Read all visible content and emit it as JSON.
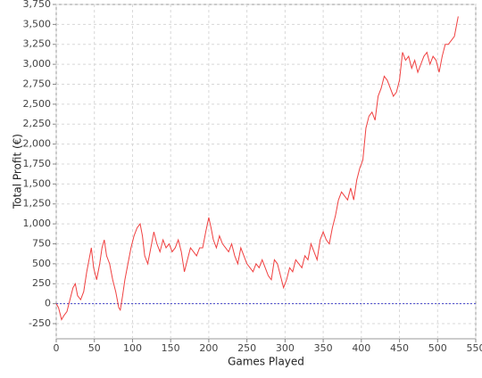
{
  "chart_data": {
    "type": "line",
    "xlabel": "Games Played",
    "ylabel": "Total Profit (€)",
    "xlim": [
      0,
      550
    ],
    "ylim": [
      -440,
      3750
    ],
    "xticks": [
      0,
      50,
      100,
      150,
      200,
      250,
      300,
      350,
      400,
      450,
      500,
      550
    ],
    "yticks": [
      -250,
      0,
      250,
      500,
      750,
      {
        "value": 1000,
        "label": "1,000"
      },
      {
        "value": 1250,
        "label": "1,250"
      },
      {
        "value": 1500,
        "label": "1,500"
      },
      {
        "value": 1750,
        "label": "1,750"
      },
      {
        "value": 2000,
        "label": "2,000"
      },
      {
        "value": 2250,
        "label": "2,250"
      },
      {
        "value": 2500,
        "label": "2,500"
      },
      {
        "value": 2750,
        "label": "2,750"
      },
      {
        "value": 3000,
        "label": "3,000"
      },
      {
        "value": 3250,
        "label": "3,250"
      },
      {
        "value": 3500,
        "label": "3,500"
      },
      {
        "value": 3750,
        "label": "3,750"
      }
    ],
    "grid": true,
    "reference_line": {
      "value": 0,
      "color": "#4444cc"
    },
    "series": [
      {
        "color": "#f04040",
        "x": [
          0,
          3,
          7,
          10,
          14,
          18,
          22,
          25,
          28,
          32,
          36,
          40,
          44,
          46,
          49,
          53,
          57,
          60,
          63,
          66,
          70,
          74,
          78,
          82,
          84,
          87,
          90,
          94,
          98,
          102,
          106,
          110,
          113,
          116,
          120,
          124,
          128,
          132,
          136,
          140,
          144,
          148,
          152,
          156,
          160,
          164,
          168,
          172,
          176,
          180,
          184,
          188,
          192,
          196,
          200,
          203,
          206,
          210,
          214,
          218,
          222,
          226,
          230,
          234,
          238,
          242,
          246,
          250,
          254,
          258,
          262,
          266,
          270,
          274,
          278,
          282,
          286,
          290,
          294,
          298,
          302,
          306,
          310,
          314,
          318,
          322,
          326,
          330,
          334,
          338,
          342,
          346,
          350,
          354,
          358,
          362,
          366,
          370,
          374,
          378,
          382,
          386,
          390,
          394,
          398,
          402,
          406,
          410,
          414,
          418,
          422,
          426,
          430,
          434,
          438,
          442,
          446,
          450,
          454,
          458,
          462,
          466,
          470,
          474,
          478,
          482,
          486,
          490,
          494,
          498,
          502,
          506,
          510,
          514,
          518,
          522,
          526,
          527
        ],
        "values": [
          0,
          -50,
          -200,
          -150,
          -100,
          50,
          200,
          250,
          100,
          50,
          150,
          400,
          600,
          700,
          450,
          300,
          500,
          700,
          800,
          600,
          500,
          300,
          150,
          -50,
          -80,
          100,
          300,
          500,
          700,
          850,
          950,
          1000,
          850,
          600,
          500,
          700,
          900,
          750,
          650,
          800,
          700,
          750,
          650,
          700,
          800,
          650,
          400,
          550,
          700,
          650,
          600,
          700,
          700,
          900,
          1080,
          950,
          800,
          700,
          850,
          750,
          700,
          650,
          750,
          600,
          500,
          700,
          600,
          500,
          450,
          400,
          500,
          450,
          550,
          450,
          350,
          300,
          550,
          500,
          350,
          200,
          300,
          450,
          400,
          550,
          500,
          450,
          600,
          550,
          750,
          650,
          550,
          800,
          900,
          800,
          750,
          950,
          1100,
          1300,
          1400,
          1350,
          1300,
          1450,
          1300,
          1550,
          1700,
          1800,
          2200,
          2350,
          2400,
          2300,
          2600,
          2700,
          2850,
          2800,
          2700,
          2600,
          2650,
          2800,
          3150,
          3050,
          3100,
          2950,
          3050,
          2900,
          3000,
          3100,
          3150,
          3000,
          3100,
          3050,
          2900,
          3100,
          3250,
          3250,
          3300,
          3350,
          3550,
          3600
        ]
      }
    ]
  }
}
